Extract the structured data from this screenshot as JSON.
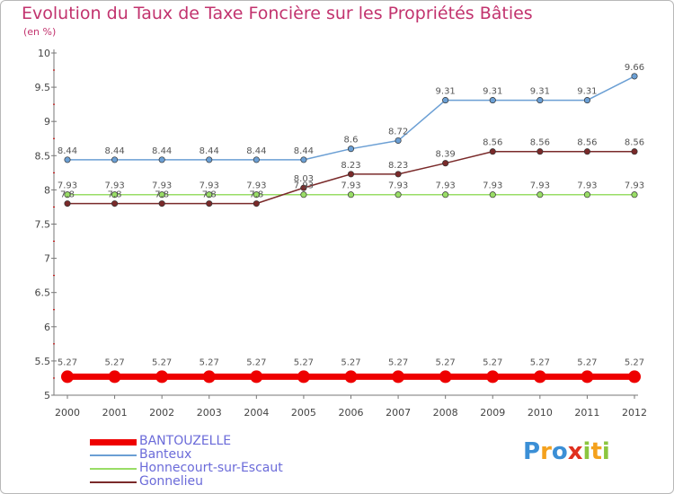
{
  "header": {
    "title": "Evolution du Taux de Taxe Foncière sur les Propriétés Bâties",
    "unit": "(en %)"
  },
  "chart_data": {
    "type": "line",
    "title": "Evolution du Taux de Taxe Foncière sur les Propriétés Bâties",
    "ylabel": "(en %)",
    "xlabel": "",
    "categories": [
      "2000",
      "2001",
      "2002",
      "2003",
      "2004",
      "2005",
      "2006",
      "2007",
      "2008",
      "2009",
      "2010",
      "2011",
      "2012"
    ],
    "ylim": [
      5,
      10
    ],
    "yticks": [
      "5",
      "5.5",
      "6",
      "6.5",
      "7",
      "7.5",
      "8",
      "8.5",
      "9",
      "9.5",
      "10"
    ],
    "grid": false,
    "legend_position": "bottom-left",
    "series": [
      {
        "name": "BANTOUZELLE",
        "color": "#ee0000",
        "values": [
          5.27,
          5.27,
          5.27,
          5.27,
          5.27,
          5.27,
          5.27,
          5.27,
          5.27,
          5.27,
          5.27,
          5.27,
          5.27
        ],
        "labels": [
          "5.27",
          "5.27",
          "5.27",
          "5.27",
          "5.27",
          "5.27",
          "5.27",
          "5.27",
          "5.27",
          "5.27",
          "5.27",
          "5.27",
          "5.27"
        ]
      },
      {
        "name": "Banteux",
        "color": "#6b9fd4",
        "values": [
          8.44,
          8.44,
          8.44,
          8.44,
          8.44,
          8.44,
          8.6,
          8.72,
          9.31,
          9.31,
          9.31,
          9.31,
          9.66
        ],
        "labels": [
          "8.44",
          "8.44",
          "8.44",
          "8.44",
          "8.44",
          "8.44",
          "8.6",
          "8.72",
          "9.31",
          "9.31",
          "9.31",
          "9.31",
          "9.66"
        ]
      },
      {
        "name": "Honnecourt-sur-Escaut",
        "color": "#99dd66",
        "values": [
          7.93,
          7.93,
          7.93,
          7.93,
          7.93,
          7.93,
          7.93,
          7.93,
          7.93,
          7.93,
          7.93,
          7.93,
          7.93
        ],
        "labels": [
          "7.93",
          "7.93",
          "7.93",
          "7.93",
          "7.93",
          "7.93",
          "7.93",
          "7.93",
          "7.93",
          "7.93",
          "7.93",
          "7.93",
          "7.93"
        ]
      },
      {
        "name": "Gonnelieu",
        "color": "#7a2a2a",
        "values": [
          7.8,
          7.8,
          7.8,
          7.8,
          7.8,
          8.03,
          8.23,
          8.23,
          8.39,
          8.56,
          8.56,
          8.56,
          8.56
        ],
        "labels": [
          "7.8",
          "7.8",
          "7.8",
          "7.8",
          "7.8",
          "8.03",
          "8.23",
          "8.23",
          "8.39",
          "8.56",
          "8.56",
          "8.56",
          "8.56"
        ]
      }
    ]
  },
  "logo": {
    "letters": [
      "P",
      "r",
      "o",
      "x",
      "i",
      "t",
      "i"
    ],
    "colors": [
      "#3b8fd6",
      "#f4a11d",
      "#3b8fd6",
      "#e0301e",
      "#8cc63f",
      "#f4a11d",
      "#8cc63f"
    ]
  }
}
